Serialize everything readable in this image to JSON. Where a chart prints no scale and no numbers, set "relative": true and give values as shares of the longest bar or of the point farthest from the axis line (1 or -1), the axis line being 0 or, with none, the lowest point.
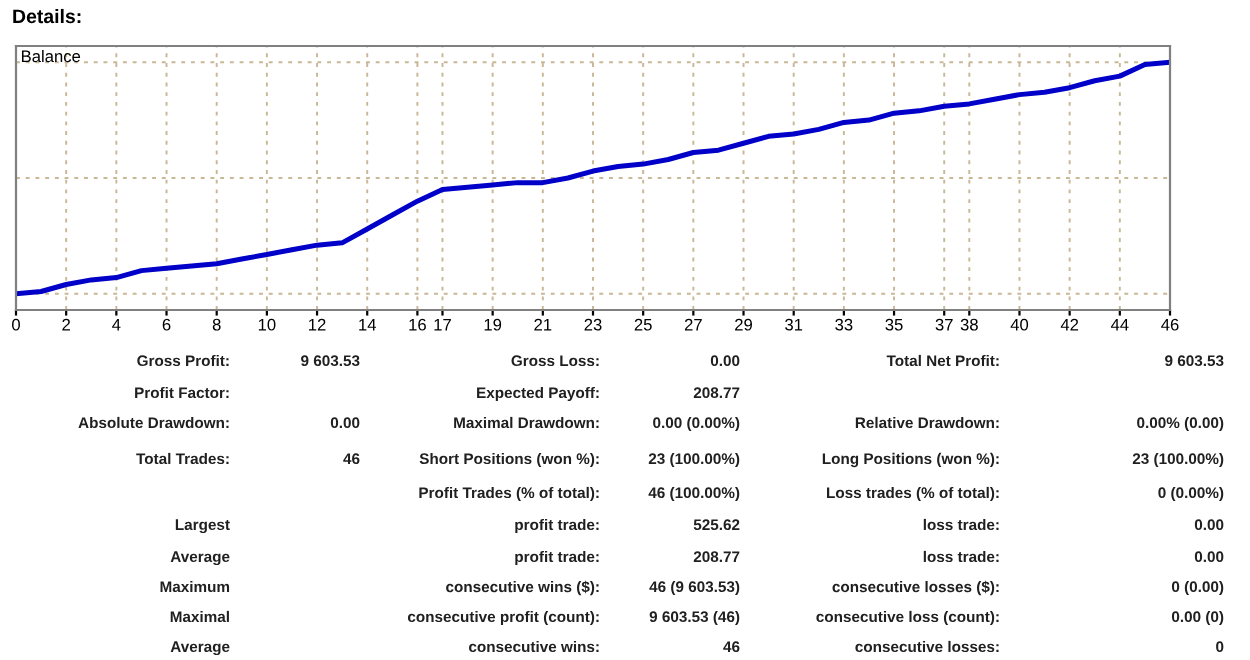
{
  "chart_data": {
    "type": "line",
    "title": "Details:",
    "subtitle": "Balance",
    "x": [
      0,
      1,
      2,
      3,
      4,
      5,
      6,
      7,
      8,
      9,
      10,
      11,
      12,
      13,
      14,
      15,
      16,
      17,
      18,
      19,
      20,
      21,
      22,
      23,
      24,
      25,
      26,
      27,
      28,
      29,
      30,
      31,
      32,
      33,
      34,
      35,
      36,
      37,
      38,
      39,
      40,
      41,
      42,
      43,
      44,
      45,
      46
    ],
    "series": [
      {
        "color": "#0000c8",
        "values": [
          0,
          0.01,
          0.04,
          0.06,
          0.07,
          0.1,
          0.11,
          0.12,
          0.13,
          0.15,
          0.17,
          0.19,
          0.21,
          0.22,
          0.28,
          0.34,
          0.4,
          0.45,
          0.46,
          0.47,
          0.48,
          0.48,
          0.5,
          0.53,
          0.55,
          0.56,
          0.58,
          0.61,
          0.62,
          0.65,
          0.68,
          0.69,
          0.71,
          0.74,
          0.75,
          0.78,
          0.79,
          0.81,
          0.82,
          0.84,
          0.86,
          0.87,
          0.89,
          0.92,
          0.94,
          0.99,
          1
        ]
      }
    ],
    "relative": true,
    "xlim": [
      0,
      46
    ],
    "xticks": [
      0,
      2,
      4,
      6,
      8,
      10,
      12,
      14,
      16,
      17,
      19,
      21,
      23,
      25,
      27,
      29,
      31,
      33,
      35,
      37,
      38,
      40,
      42,
      44,
      46
    ],
    "grid": true,
    "marker": "none",
    "line_style": "solid",
    "annotations": [
      "Gross Profit:",
      "9 603.53",
      "Gross Loss:",
      "0.00",
      "Total Net Profit:",
      "9 603.53",
      "Profit Factor:",
      "Expected Payoff:",
      "208.77",
      "Absolute Drawdown:",
      "0.00",
      "Maximal Drawdown:",
      "0.00 (0.00%)",
      "Relative Drawdown:",
      "0.00% (0.00)",
      "Total Trades:",
      "46",
      "Short Positions (won %):",
      "23 (100.00%)",
      "Long Positions (won %):",
      "23 (100.00%)",
      "Profit Trades (% of total):",
      "46 (100.00%)",
      "Loss trades (% of total):",
      "0 (0.00%)",
      "Largest",
      "profit trade:",
      "525.62",
      "loss trade:",
      "0.00",
      "Average",
      "profit trade:",
      "208.77",
      "loss trade:",
      "0.00",
      "Maximum",
      "consecutive wins ($):",
      "46 (9 603.53)",
      "consecutive losses ($):",
      "0 (0.00)",
      "Maximal",
      "consecutive profit (count):",
      "9 603.53 (46)",
      "consecutive loss (count):",
      "0.00 (0)",
      "Average",
      "consecutive wins:",
      "46",
      "consecutive losses:",
      "0"
    ]
  }
}
